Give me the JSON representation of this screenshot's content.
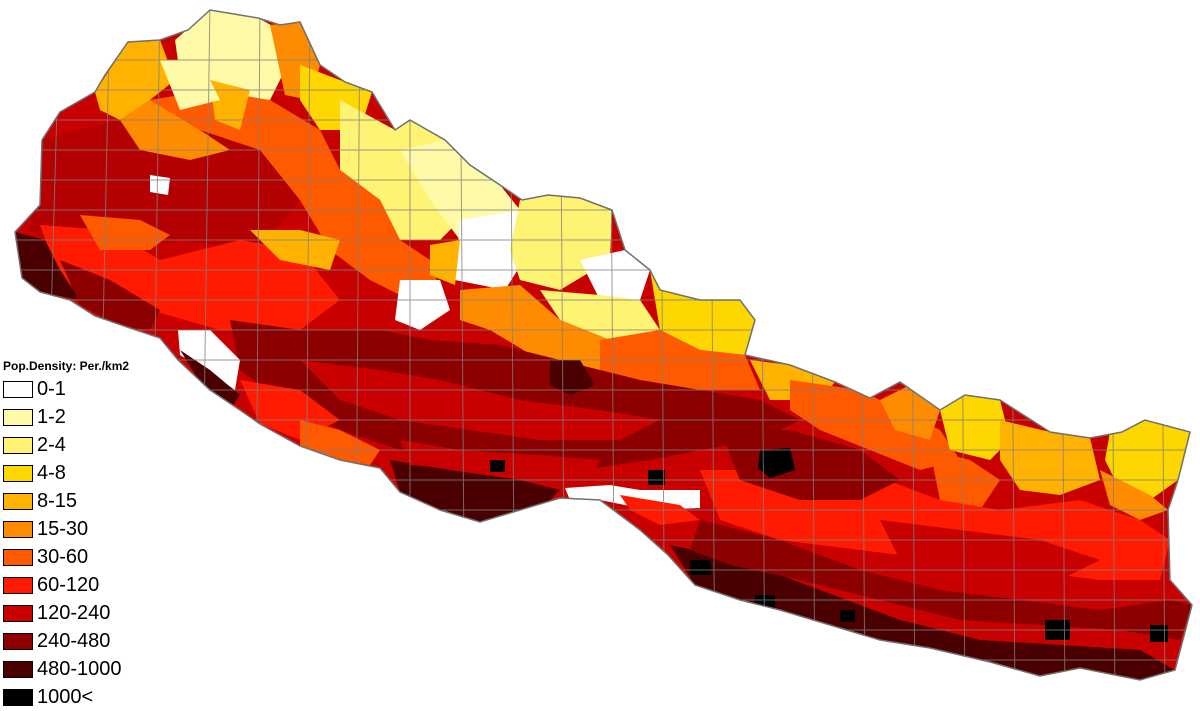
{
  "legend": {
    "title": "Pop.Density: Per./km2",
    "classes": [
      {
        "label": "0-1",
        "color": "#ffffff"
      },
      {
        "label": "1-2",
        "color": "#fffaa8"
      },
      {
        "label": "2-4",
        "color": "#fff373"
      },
      {
        "label": "4-8",
        "color": "#ffd700"
      },
      {
        "label": "8-15",
        "color": "#ffb300"
      },
      {
        "label": "15-30",
        "color": "#ff8c00"
      },
      {
        "label": "30-60",
        "color": "#ff5a00"
      },
      {
        "label": "60-120",
        "color": "#ff1a00"
      },
      {
        "label": "120-240",
        "color": "#c80000"
      },
      {
        "label": "240-480",
        "color": "#8c0000"
      },
      {
        "label": "480-1000",
        "color": "#4a0000"
      },
      {
        "label": "1000<",
        "color": "#000000"
      }
    ]
  },
  "map": {
    "border_color": "#808080"
  }
}
